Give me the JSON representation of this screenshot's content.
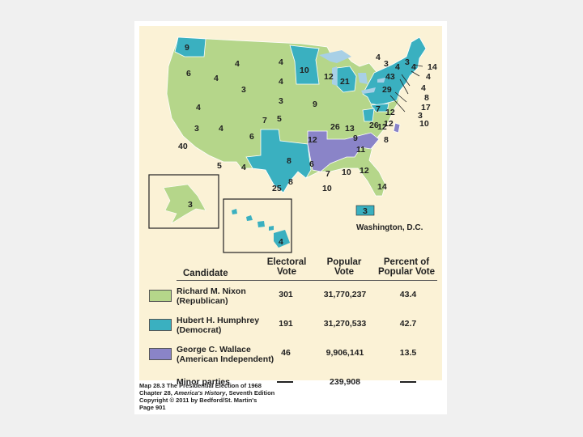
{
  "colors": {
    "republican": "#b5d68a",
    "democrat": "#3ab0c0",
    "american_independent": "#8a84c8",
    "lake": "#a8d0e6",
    "ocean": "#fbf2d6"
  },
  "map": {
    "state_votes": [
      {
        "value": "9"
      },
      {
        "value": "4"
      },
      {
        "value": "4"
      },
      {
        "value": "6"
      },
      {
        "value": "4"
      },
      {
        "value": "4"
      },
      {
        "value": "10"
      },
      {
        "value": "3"
      },
      {
        "value": "12"
      },
      {
        "value": "21"
      },
      {
        "value": "3"
      },
      {
        "value": "4"
      },
      {
        "value": "5"
      },
      {
        "value": "9"
      },
      {
        "value": "3"
      },
      {
        "value": "4"
      },
      {
        "value": "6"
      },
      {
        "value": "7"
      },
      {
        "value": "26"
      },
      {
        "value": "13"
      },
      {
        "value": "26"
      },
      {
        "value": "40"
      },
      {
        "value": "12"
      },
      {
        "value": "9"
      },
      {
        "value": "12"
      },
      {
        "value": "8"
      },
      {
        "value": "11"
      },
      {
        "value": "5"
      },
      {
        "value": "4"
      },
      {
        "value": "8"
      },
      {
        "value": "6"
      },
      {
        "value": "7"
      },
      {
        "value": "10"
      },
      {
        "value": "12"
      },
      {
        "value": "25"
      },
      {
        "value": "10"
      },
      {
        "value": "14"
      },
      {
        "value": "4"
      },
      {
        "value": "3"
      },
      {
        "value": "4"
      },
      {
        "value": "43"
      },
      {
        "value": "29"
      },
      {
        "value": "7"
      },
      {
        "value": "12"
      },
      {
        "value": "12"
      },
      {
        "value": "8"
      },
      {
        "value": "4"
      },
      {
        "value": "14"
      },
      {
        "value": "4"
      },
      {
        "value": "8"
      },
      {
        "value": "17"
      },
      {
        "value": "3"
      },
      {
        "value": "10"
      },
      {
        "value": "3"
      },
      {
        "value": "4"
      }
    ],
    "alaska_votes": "3",
    "hawaii_votes": "4",
    "dc_votes": "3",
    "dc_label": "Washington, D.C."
  },
  "legend": {
    "headers": {
      "candidate": "Candidate",
      "electoral_1": "Electoral",
      "electoral_2": "Vote",
      "popular_1": "Popular",
      "popular_2": "Vote",
      "percent_1": "Percent of",
      "percent_2": "Popular Vote"
    },
    "rows": [
      {
        "name": "Richard M. Nixon",
        "party": "(Republican)",
        "electoral": "301",
        "popular": "31,770,237",
        "percent": "43.4"
      },
      {
        "name": "Hubert H. Humphrey",
        "party": "(Democrat)",
        "electoral": "191",
        "popular": "31,270,533",
        "percent": "42.7"
      },
      {
        "name": "George C. Wallace",
        "party": "(American Independent)",
        "electoral": "46",
        "popular": "9,906,141",
        "percent": "13.5"
      },
      {
        "name": "Minor parties",
        "party": "",
        "electoral": "",
        "popular": "239,908",
        "percent": ""
      }
    ]
  },
  "caption": {
    "line1": "Map 28.3 The Presidential Election of 1968",
    "line2_prefix": "Chapter 28, ",
    "line2_italic": "America's History",
    "line2_suffix": ", Seventh Edition",
    "line3": "Copyright © 2011 by Bedford/St. Martin's",
    "line4": "Page 901"
  }
}
